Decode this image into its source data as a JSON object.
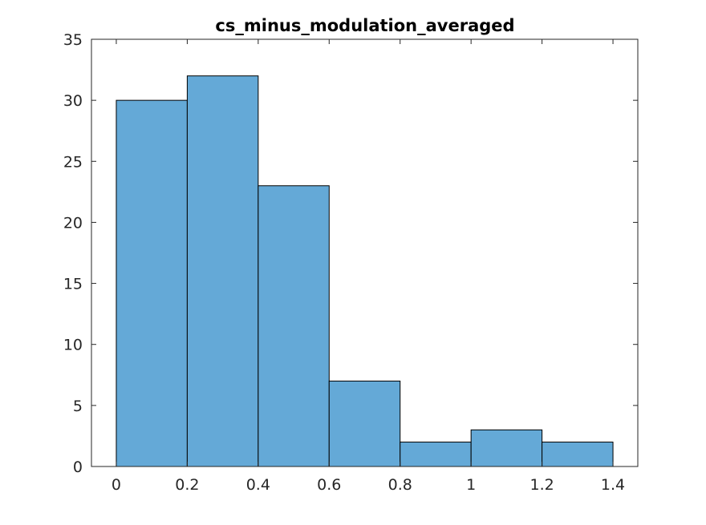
{
  "chart_data": {
    "type": "bar",
    "title": "cs_minus_modulation_averaged",
    "xlabel": "",
    "ylabel": "",
    "bin_edges": [
      0,
      0.2,
      0.4,
      0.6,
      0.8,
      1.0,
      1.2,
      1.4
    ],
    "values": [
      30,
      32,
      23,
      7,
      2,
      3,
      2
    ],
    "xlim": [
      -0.07,
      1.47
    ],
    "ylim": [
      0,
      35
    ],
    "xticks": [
      "0",
      "0.2",
      "0.4",
      "0.6",
      "0.8",
      "1",
      "1.2",
      "1.4"
    ],
    "xtick_values": [
      0,
      0.2,
      0.4,
      0.6,
      0.8,
      1.0,
      1.2,
      1.4
    ],
    "yticks": [
      "0",
      "5",
      "10",
      "15",
      "20",
      "25",
      "30",
      "35"
    ],
    "ytick_values": [
      0,
      5,
      10,
      15,
      20,
      25,
      30,
      35
    ],
    "grid": false,
    "legend": "none",
    "bar_color": "#64a9d7",
    "edge_color": "#000000",
    "axis_color": "#262626"
  }
}
